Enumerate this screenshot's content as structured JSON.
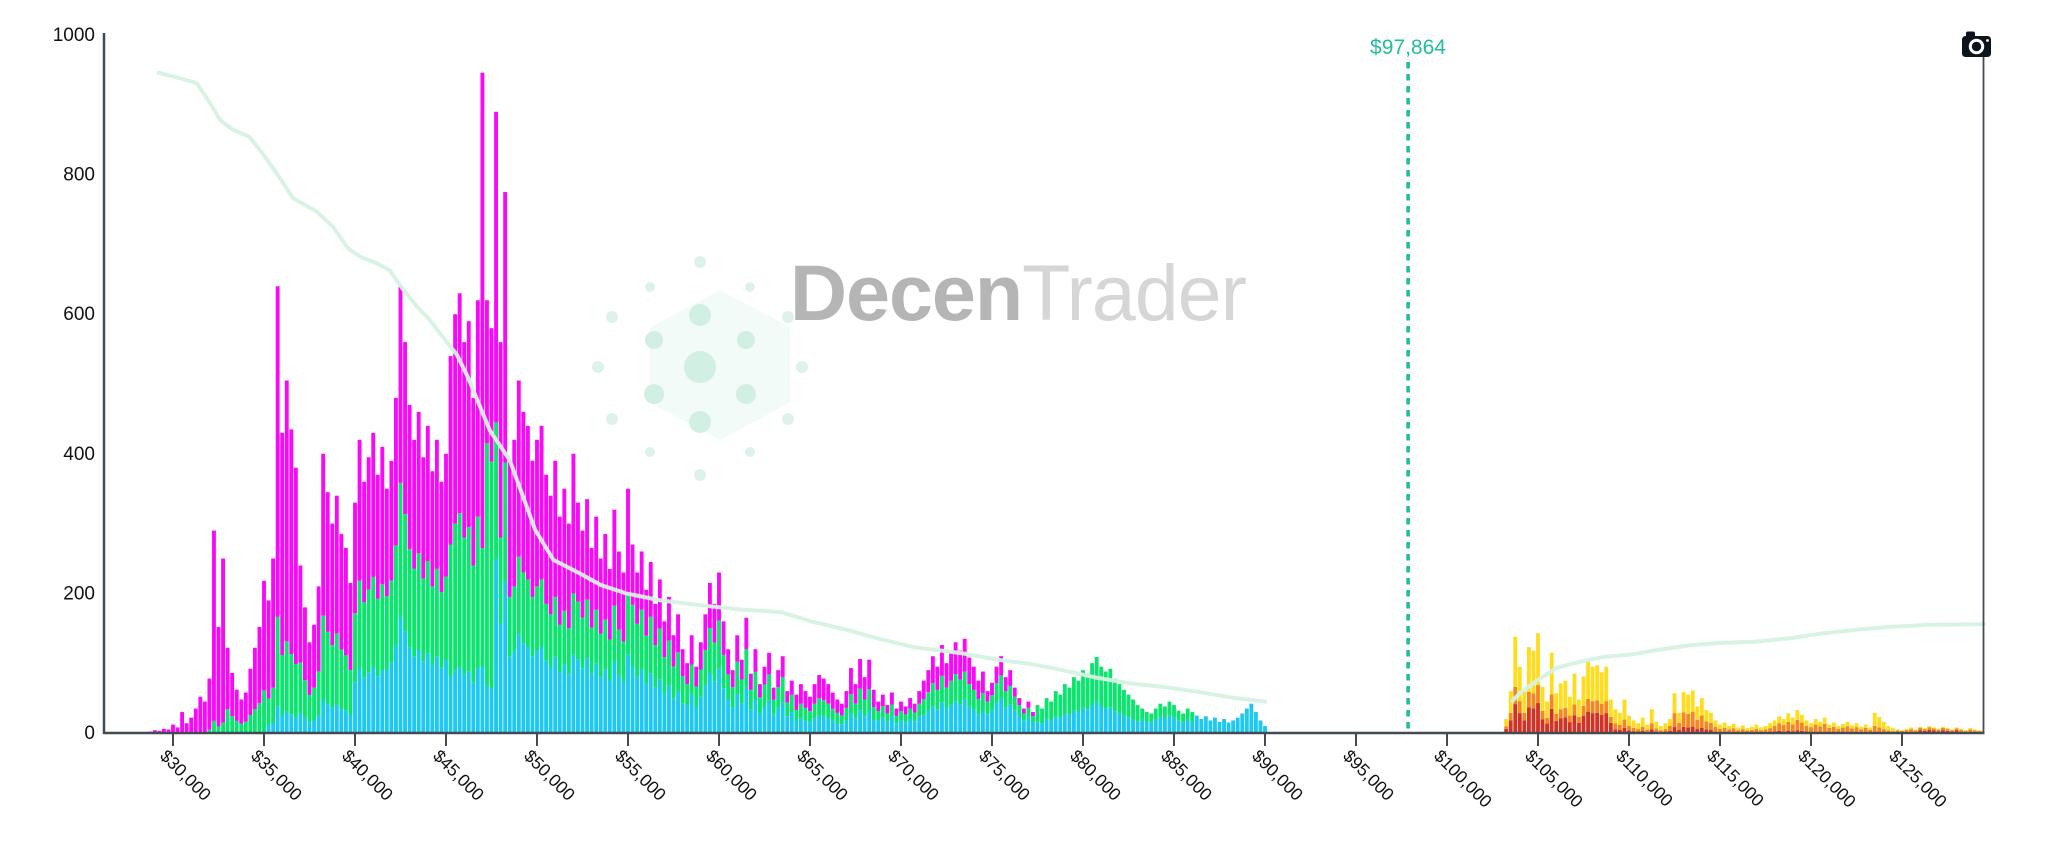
{
  "watermark": {
    "brand_bold": "Decen",
    "brand_light": "Trader"
  },
  "toolbar": {
    "camera_button_title": "Download chart image"
  },
  "current_price": {
    "label": "$97,864",
    "value": 97864,
    "color": "#23bd9c"
  },
  "colors": {
    "magenta": "#f908f9",
    "green": "#0ae56e",
    "blue": "#1ec8f0",
    "yellow": "#ffdd1e",
    "orange": "#f6871f",
    "red": "#d03325",
    "cumulative_line": "#d6f2e2",
    "price_line": "#23bd9c",
    "axis": "#444a53",
    "tick_text": "#111111"
  },
  "axes": {
    "y_ticks": [
      {
        "value": 0,
        "label": "0"
      },
      {
        "value": 200,
        "label": "200"
      },
      {
        "value": 400,
        "label": "400"
      },
      {
        "value": 600,
        "label": "600"
      },
      {
        "value": 800,
        "label": "800"
      },
      {
        "value": 1000,
        "label": "1000"
      }
    ],
    "x_ticks": [
      {
        "price": 30000,
        "label": "$30,000"
      },
      {
        "price": 35000,
        "label": "$35,000"
      },
      {
        "price": 40000,
        "label": "$40,000"
      },
      {
        "price": 45000,
        "label": "$45,000"
      },
      {
        "price": 50000,
        "label": "$50,000"
      },
      {
        "price": 55000,
        "label": "$55,000"
      },
      {
        "price": 60000,
        "label": "$60,000"
      },
      {
        "price": 65000,
        "label": "$65,000"
      },
      {
        "price": 70000,
        "label": "$70,000"
      },
      {
        "price": 75000,
        "label": "$75,000"
      },
      {
        "price": 80000,
        "label": "$80,000"
      },
      {
        "price": 85000,
        "label": "$85,000"
      },
      {
        "price": 90000,
        "label": "$90,000"
      },
      {
        "price": 95000,
        "label": "$95,000"
      },
      {
        "price": 100000,
        "label": "$100,000"
      },
      {
        "price": 105000,
        "label": "$105,000"
      },
      {
        "price": 110000,
        "label": "$110,000"
      },
      {
        "price": 115000,
        "label": "$115,000"
      },
      {
        "price": 120000,
        "label": "$120,000"
      },
      {
        "price": 125000,
        "label": "$125,000"
      }
    ]
  },
  "chart_data": {
    "type": "bar",
    "title": "",
    "xlabel": "",
    "ylabel": "",
    "ylim": [
      0,
      1000
    ],
    "x_price_range": [
      24500,
      129560
    ],
    "grid": false,
    "legend": "none",
    "description": "Liquidation-map style stacked histogram of liquidation levels by price, split below/above the current price of $97,864, with light mint cumulative lines.",
    "below_price_bars": {
      "start_price": 28750,
      "price_step": 250,
      "layer_order_bottom_to_top": [
        "blue",
        "green",
        "magenta"
      ],
      "splits": [
        {
          "max": 32000,
          "f1": 0,
          "f2": 0
        },
        {
          "max": 33000,
          "f1": 0,
          "f2": 0.06
        },
        {
          "max": 35250,
          "f1": 0,
          "f2": 0.28
        },
        {
          "max": 37000,
          "f1": 0.06,
          "f2": 0.2
        },
        {
          "max": 40000,
          "f1": 0.12,
          "f2": 0.3
        },
        {
          "max": 41600,
          "f1": 0.22,
          "f2": 0.3
        },
        {
          "max": 45100,
          "f1": 0.26,
          "f2": 0.3
        },
        {
          "max": 46900,
          "f1": 0.15,
          "f2": 0.35
        },
        {
          "max": 47100,
          "f1": 0.1,
          "f2": 0.18
        },
        {
          "max": 47700,
          "f1": 0.11,
          "f2": 0.56
        },
        {
          "max": 52100,
          "f1": 0.28,
          "f2": 0.22
        },
        {
          "max": 55100,
          "f1": 0.32,
          "f2": 0.25
        },
        {
          "max": 58100,
          "f1": 0.35,
          "f2": 0.33
        },
        {
          "max": 60600,
          "f1": 0.4,
          "f2": 0.3
        },
        {
          "max": 64100,
          "f1": 0.4,
          "f2": 0.33
        },
        {
          "max": 68600,
          "f1": 0.3,
          "f2": 0.3
        },
        {
          "max": 71100,
          "f1": 0.4,
          "f2": 0.3
        },
        {
          "max": 74600,
          "f1": 0.35,
          "f2": 0.3
        },
        {
          "max": 76100,
          "f1": 0.45,
          "f2": 0.3
        },
        {
          "max": 77400,
          "f1": 0.5,
          "f2": 0.3
        },
        {
          "max": 83100,
          "f1": 0.4,
          "f2": 0.6
        },
        {
          "max": 86100,
          "f1": 0.55,
          "f2": 0.45
        },
        {
          "max": 90100,
          "f1": 1.0,
          "f2": 0
        }
      ],
      "totals": [
        2,
        4,
        3,
        6,
        5,
        12,
        8,
        30,
        14,
        22,
        35,
        52,
        45,
        78,
        290,
        152,
        250,
        122,
        86,
        62,
        48,
        58,
        92,
        122,
        152,
        218,
        190,
        250,
        640,
        430,
        505,
        435,
        380,
        240,
        180,
        130,
        155,
        210,
        400,
        345,
        300,
        340,
        285,
        265,
        215,
        330,
        420,
        360,
        395,
        430,
        370,
        410,
        350,
        390,
        480,
        640,
        560,
        470,
        420,
        460,
        395,
        440,
        375,
        420,
        360,
        400,
        540,
        600,
        630,
        560,
        590,
        480,
        620,
        946,
        620,
        580,
        890,
        560,
        775,
        390,
        420,
        505,
        460,
        440,
        390,
        420,
        440,
        370,
        340,
        390,
        310,
        350,
        300,
        400,
        330,
        290,
        335,
        265,
        310,
        250,
        285,
        235,
        320,
        260,
        230,
        350,
        270,
        230,
        260,
        205,
        245,
        185,
        220,
        160,
        195,
        140,
        170,
        120,
        100,
        140,
        95,
        130,
        170,
        215,
        185,
        230,
        160,
        120,
        90,
        140,
        105,
        165,
        85,
        120,
        70,
        95,
        115,
        65,
        90,
        110,
        60,
        75,
        55,
        70,
        60,
        52,
        70,
        83,
        78,
        70,
        58,
        48,
        42,
        60,
        93,
        70,
        106,
        80,
        105,
        62,
        45,
        55,
        40,
        58,
        35,
        45,
        38,
        50,
        42,
        60,
        75,
        90,
        110,
        95,
        126,
        100,
        115,
        130,
        118,
        135,
        108,
        95,
        75,
        88,
        60,
        72,
        95,
        110,
        80,
        90,
        65,
        50,
        35,
        45,
        30,
        40,
        35,
        50,
        45,
        60,
        55,
        70,
        65,
        80,
        75,
        90,
        85,
        100,
        109,
        95,
        88,
        92,
        78,
        70,
        62,
        55,
        48,
        40,
        35,
        30,
        28,
        35,
        42,
        38,
        45,
        40,
        32,
        28,
        35,
        30,
        25,
        20,
        24,
        18,
        22,
        16,
        20,
        15,
        18,
        22,
        28,
        35,
        42,
        30,
        18,
        10
      ]
    },
    "above_price_bars": {
      "start_price": 103250,
      "price_step": 250,
      "layer_order_bottom_to_top": [
        "red",
        "orange",
        "yellow"
      ],
      "splits": [
        {
          "max": 109100,
          "f1": 0.3,
          "f2": 0.18
        },
        {
          "max": 112100,
          "f1": 0.15,
          "f2": 0.25
        },
        {
          "max": 114600,
          "f1": 0.15,
          "f2": 0.35
        },
        {
          "max": 117900,
          "f1": 0.1,
          "f2": 0.4
        },
        {
          "max": 119900,
          "f1": 0.12,
          "f2": 0.45
        },
        {
          "max": 123400,
          "f1": 0.05,
          "f2": 0.55
        },
        {
          "max": 124600,
          "f1": 0.05,
          "f2": 0.3
        },
        {
          "max": 125900,
          "f1": 0.2,
          "f2": 0.5
        },
        {
          "max": 128200,
          "f1": 0.45,
          "f2": 0.35
        },
        {
          "max": 129600,
          "f1": 0.25,
          "f2": 0.45
        }
      ],
      "totals": [
        20,
        60,
        138,
        95,
        60,
        123,
        118,
        143,
        66,
        45,
        115,
        57,
        71,
        75,
        52,
        85,
        48,
        81,
        102,
        95,
        97,
        87,
        95,
        48,
        34,
        29,
        48,
        25,
        18,
        14,
        22,
        12,
        34,
        16,
        10,
        14,
        20,
        57,
        29,
        59,
        55,
        61,
        38,
        50,
        33,
        29,
        18,
        12,
        15,
        10,
        13,
        8,
        11,
        7,
        9,
        12,
        8,
        10,
        14,
        18,
        24,
        20,
        28,
        22,
        33,
        26,
        18,
        14,
        20,
        16,
        22,
        12,
        15,
        10,
        13,
        16,
        11,
        14,
        9,
        12,
        8,
        29,
        23,
        16,
        10,
        7,
        5,
        4,
        6,
        8,
        5,
        9,
        7,
        10,
        8,
        6,
        9,
        7,
        5,
        8,
        6,
        4,
        7,
        5,
        4,
        3
      ]
    },
    "cumulative_line_below": [
      [
        29200,
        946
      ],
      [
        30400,
        938
      ],
      [
        31300,
        931
      ],
      [
        32000,
        904
      ],
      [
        32600,
        878
      ],
      [
        33300,
        864
      ],
      [
        34200,
        854
      ],
      [
        34900,
        831
      ],
      [
        35700,
        802
      ],
      [
        36600,
        766
      ],
      [
        37900,
        747
      ],
      [
        38800,
        725
      ],
      [
        39600,
        695
      ],
      [
        40300,
        682
      ],
      [
        41200,
        673
      ],
      [
        41900,
        663
      ],
      [
        42600,
        637
      ],
      [
        43400,
        611
      ],
      [
        44100,
        592
      ],
      [
        44800,
        568
      ],
      [
        45600,
        542
      ],
      [
        46200,
        510
      ],
      [
        47400,
        434
      ],
      [
        48500,
        391
      ],
      [
        49900,
        291
      ],
      [
        50900,
        248
      ],
      [
        52400,
        228
      ],
      [
        53500,
        212
      ],
      [
        54900,
        200
      ],
      [
        56800,
        190
      ],
      [
        59000,
        183
      ],
      [
        61200,
        177
      ],
      [
        63400,
        173
      ],
      [
        65200,
        159
      ],
      [
        67000,
        148
      ],
      [
        68800,
        135
      ],
      [
        70700,
        123
      ],
      [
        73400,
        114
      ],
      [
        75300,
        105
      ],
      [
        77100,
        99
      ],
      [
        78900,
        90
      ],
      [
        80800,
        79
      ],
      [
        82600,
        71
      ],
      [
        84400,
        66
      ],
      [
        86300,
        59
      ],
      [
        88100,
        51
      ],
      [
        90000,
        45
      ]
    ],
    "cumulative_line_above": [
      [
        103600,
        46
      ],
      [
        104000,
        57
      ],
      [
        105000,
        76
      ],
      [
        106000,
        93
      ],
      [
        107300,
        102
      ],
      [
        108600,
        109
      ],
      [
        110000,
        112
      ],
      [
        111600,
        119
      ],
      [
        113400,
        126
      ],
      [
        115000,
        129
      ],
      [
        117000,
        131
      ],
      [
        118900,
        136
      ],
      [
        120700,
        143
      ],
      [
        122500,
        148
      ],
      [
        124300,
        152
      ],
      [
        126500,
        155
      ],
      [
        129500,
        156
      ]
    ]
  }
}
